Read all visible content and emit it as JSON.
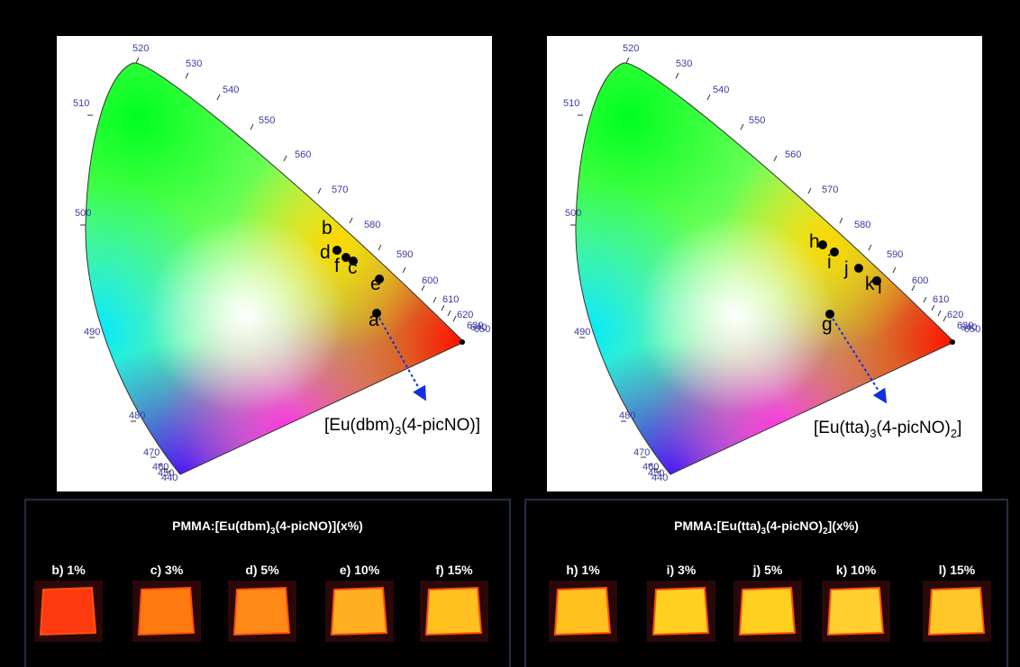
{
  "panels": [
    {
      "wavelengths": [
        "520",
        "530",
        "540",
        "550",
        "560",
        "570",
        "580",
        "590",
        "600",
        "610",
        "620",
        "630",
        "640",
        "650",
        "510",
        "500",
        "490",
        "480",
        "470",
        "460",
        "450",
        "440"
      ],
      "points": [
        "a",
        "b",
        "c",
        "d",
        "e",
        "f"
      ],
      "compound": [
        "[Eu(dbm)",
        "3",
        "(4-picNO)]"
      ]
    },
    {
      "wavelengths": [
        "520",
        "530",
        "540",
        "550",
        "560",
        "570",
        "580",
        "590",
        "600",
        "610",
        "620",
        "630",
        "640",
        "650",
        "510",
        "500",
        "490",
        "480",
        "470",
        "460",
        "450",
        "440"
      ],
      "points": [
        "g",
        "h",
        "i",
        "j",
        "k",
        "l"
      ],
      "compound": [
        "[Eu(tta)",
        "3",
        "(4-picNO)",
        "2",
        "]"
      ]
    }
  ],
  "samples": [
    {
      "title": [
        "PMMA:[Eu(dbm)",
        "3",
        "(4-picNO)](x%)"
      ],
      "items": [
        "b) 1%",
        "c) 3%",
        "d) 5%",
        "e) 10%",
        "f) 15%"
      ]
    },
    {
      "title": [
        "PMMA:[Eu(tta)",
        "3",
        "(4-picNO)",
        "2",
        "](x%)"
      ],
      "items": [
        "h) 1%",
        "i) 3%",
        "j) 5%",
        "k) 10%",
        "l) 15%"
      ]
    }
  ]
}
